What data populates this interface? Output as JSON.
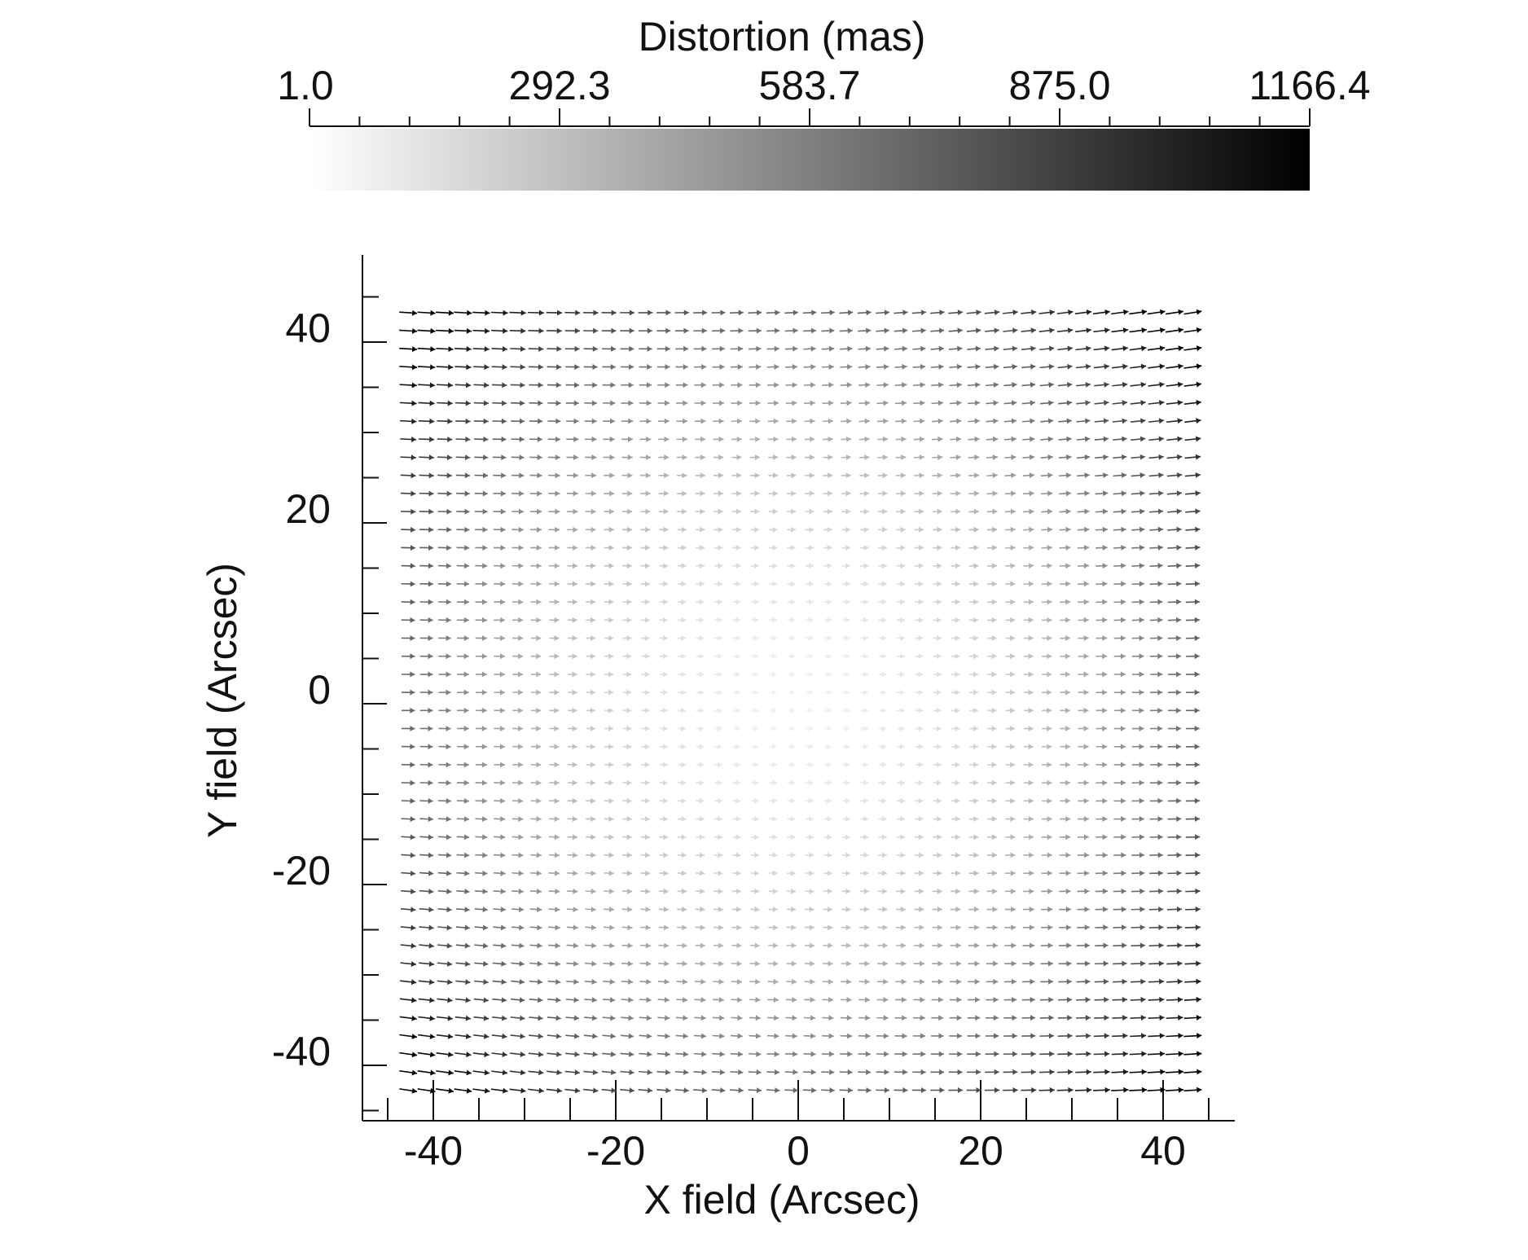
{
  "chart_data": {
    "type": "quiver",
    "colorbar": {
      "title": "Distortion (mas)",
      "min": 1.0,
      "max": 1166.4,
      "tick_labels": [
        "1.0",
        "292.3",
        "583.7",
        "875.0",
        "1166.4"
      ],
      "tick_values": [
        1.0,
        292.3,
        583.7,
        875.0,
        1166.4
      ],
      "color_low": "#ffffff",
      "color_high": "#000000"
    },
    "xlabel": "X field (Arcsec)",
    "ylabel": "Y field (Arcsec)",
    "xlim": [
      -46,
      48
    ],
    "ylim": [
      -48,
      48
    ],
    "xticks": [
      -40,
      -20,
      0,
      20,
      40
    ],
    "xtick_labels": [
      "-40",
      "-20",
      "0",
      "20",
      "40"
    ],
    "yticks": [
      -40,
      -20,
      0,
      20,
      40
    ],
    "ytick_labels": [
      "-40",
      "-20",
      "0",
      "20",
      "40"
    ],
    "grid": false,
    "field": {
      "x_start": -42.75,
      "x_step": 2.0,
      "x_count": 44,
      "y_start": -42.75,
      "y_step": 2.0,
      "y_count": 44,
      "direction": "mostly +x, slight curl toward center",
      "max_distortion_mas": 1166.4,
      "min_distortion_mas": 1.0
    }
  }
}
